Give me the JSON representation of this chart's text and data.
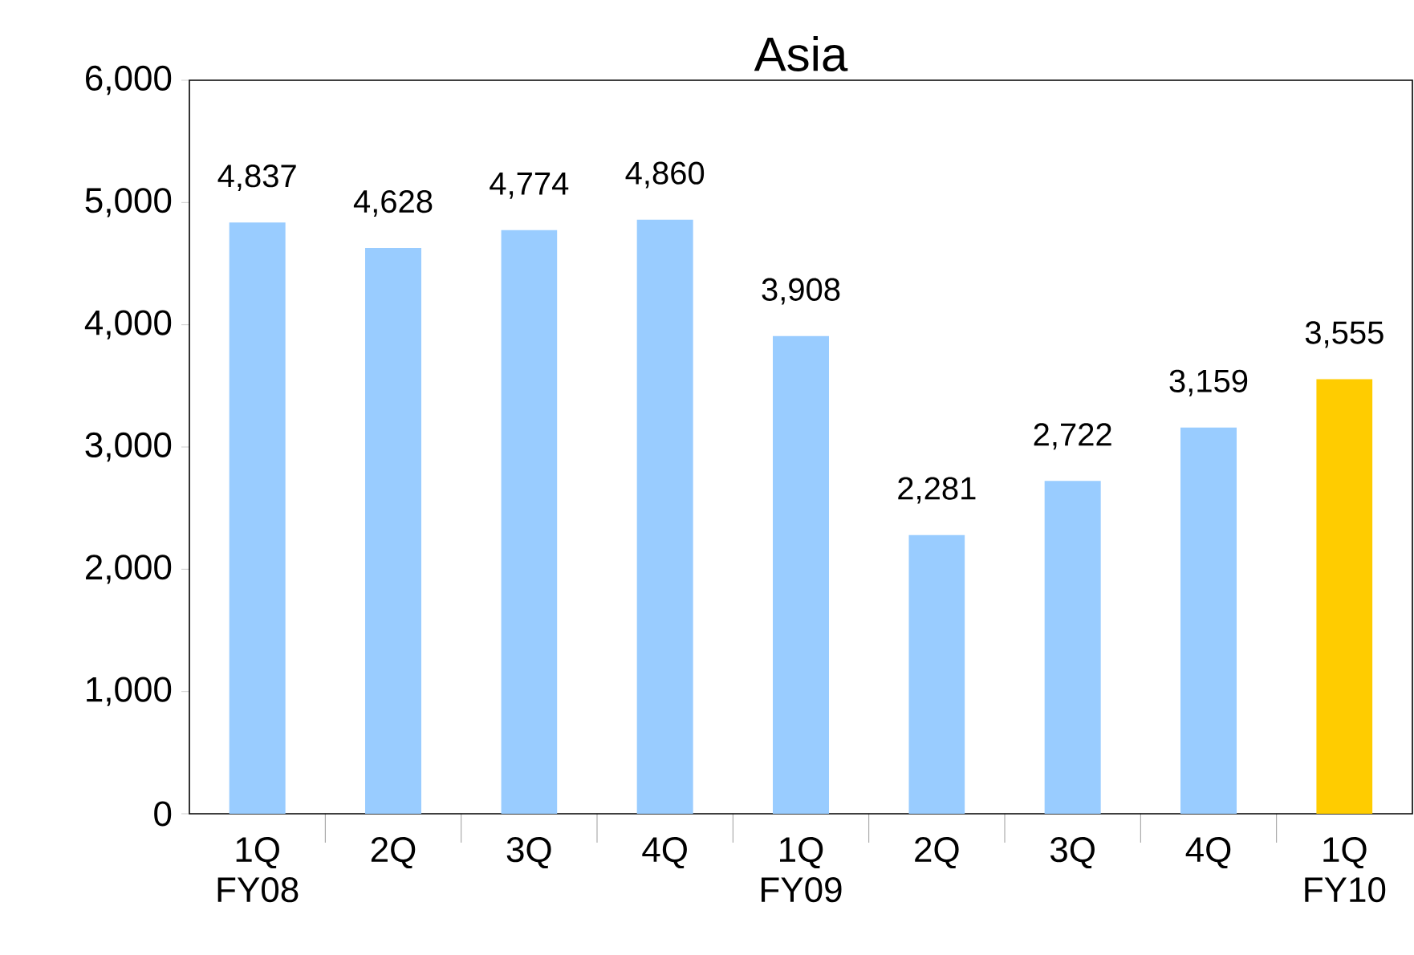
{
  "chart_data": {
    "type": "bar",
    "title": "Asia",
    "categories": [
      "1Q FY08",
      "2Q",
      "3Q",
      "4Q",
      "1Q FY09",
      "2Q",
      "3Q",
      "4Q",
      "1Q FY10"
    ],
    "values": [
      4837,
      4628,
      4774,
      4860,
      3908,
      2281,
      2722,
      3159,
      3555
    ],
    "colors": [
      "#99ccff",
      "#99ccff",
      "#99ccff",
      "#99ccff",
      "#99ccff",
      "#99ccff",
      "#99ccff",
      "#99ccff",
      "#ffcc00"
    ],
    "value_labels": [
      "4,837",
      "4,628",
      "4,774",
      "4,860",
      "3,908",
      "2,281",
      "2,722",
      "3,159",
      "3,555"
    ],
    "ylim": [
      0,
      6000
    ],
    "yticks": [
      {
        "value": 0,
        "label": "0"
      },
      {
        "value": 1000,
        "label": "1,000"
      },
      {
        "value": 2000,
        "label": "2,000"
      },
      {
        "value": 3000,
        "label": "3,000"
      },
      {
        "value": 4000,
        "label": "4,000"
      },
      {
        "value": 5000,
        "label": "5,000"
      },
      {
        "value": 6000,
        "label": "6,000"
      }
    ],
    "grid": false
  }
}
